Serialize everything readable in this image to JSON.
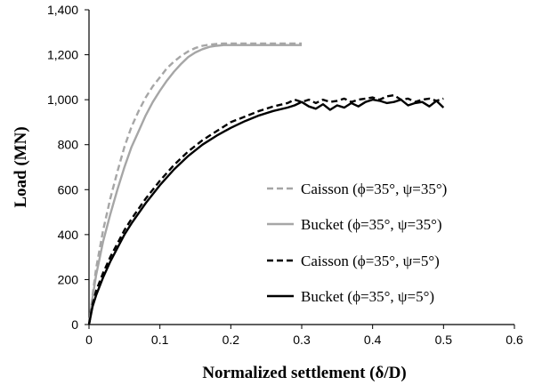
{
  "chart_data": {
    "type": "line",
    "title": "",
    "xlabel": "Normalized settlement (δ/D)",
    "ylabel": "Load (MN)",
    "xlim": [
      0,
      0.6
    ],
    "ylim": [
      0,
      1400
    ],
    "xticks": [
      0,
      0.1,
      0.2,
      0.3,
      0.4,
      0.5,
      0.6
    ],
    "xtick_labels": [
      "0",
      "0.1",
      "0.2",
      "0.3",
      "0.4",
      "0.5",
      "0.6"
    ],
    "yticks": [
      0,
      200,
      400,
      600,
      800,
      1000,
      1200,
      1400
    ],
    "ytick_labels": [
      "0",
      "200",
      "400",
      "600",
      "800",
      "1,000",
      "1,200",
      "1,400"
    ],
    "grid": false,
    "legend_position": "center-right",
    "series": [
      {
        "name": "Caisson (ϕ=35°, ψ=35°)",
        "color": "#a6a6a6",
        "dash": "dashed",
        "x": [
          0,
          0.005,
          0.01,
          0.02,
          0.03,
          0.04,
          0.05,
          0.06,
          0.07,
          0.08,
          0.09,
          0.1,
          0.11,
          0.12,
          0.13,
          0.14,
          0.15,
          0.16,
          0.17,
          0.18,
          0.19,
          0.2,
          0.25,
          0.3
        ],
        "y": [
          0,
          130,
          250,
          420,
          560,
          680,
          790,
          880,
          950,
          1010,
          1060,
          1100,
          1140,
          1170,
          1195,
          1215,
          1230,
          1240,
          1245,
          1248,
          1250,
          1250,
          1250,
          1250
        ]
      },
      {
        "name": "Bucket (ϕ=35°, ψ=35°)",
        "color": "#a6a6a6",
        "dash": "solid",
        "x": [
          0,
          0.005,
          0.01,
          0.02,
          0.03,
          0.04,
          0.05,
          0.06,
          0.07,
          0.08,
          0.09,
          0.1,
          0.11,
          0.12,
          0.13,
          0.14,
          0.15,
          0.16,
          0.17,
          0.18,
          0.19,
          0.2,
          0.21,
          0.25,
          0.3
        ],
        "y": [
          0,
          120,
          220,
          370,
          490,
          600,
          700,
          790,
          860,
          930,
          990,
          1040,
          1085,
          1125,
          1160,
          1190,
          1210,
          1225,
          1235,
          1240,
          1243,
          1243,
          1243,
          1243,
          1243
        ]
      },
      {
        "name": "Caisson (ϕ=35°, ψ=5°)",
        "color": "#000000",
        "dash": "dashed",
        "x": [
          0,
          0.005,
          0.01,
          0.02,
          0.03,
          0.04,
          0.05,
          0.06,
          0.08,
          0.1,
          0.12,
          0.14,
          0.16,
          0.18,
          0.2,
          0.22,
          0.24,
          0.26,
          0.28,
          0.29,
          0.3,
          0.31,
          0.32,
          0.33,
          0.34,
          0.35,
          0.36,
          0.37,
          0.38,
          0.39,
          0.4,
          0.41,
          0.42,
          0.43,
          0.44,
          0.45,
          0.46,
          0.47,
          0.48,
          0.49,
          0.5
        ],
        "y": [
          0,
          90,
          150,
          230,
          300,
          360,
          420,
          470,
          560,
          640,
          710,
          770,
          820,
          860,
          900,
          925,
          950,
          970,
          985,
          1000,
          990,
          1000,
          985,
          1000,
          990,
          995,
          1005,
          990,
          1000,
          1005,
          1010,
          1000,
          1015,
          1020,
          1000,
          1005,
          990,
          1000,
          1005,
          995,
          1005
        ]
      },
      {
        "name": "Bucket (ϕ=35°, ψ=5°)",
        "color": "#000000",
        "dash": "solid",
        "x": [
          0,
          0.005,
          0.01,
          0.02,
          0.03,
          0.04,
          0.05,
          0.06,
          0.08,
          0.1,
          0.12,
          0.14,
          0.16,
          0.18,
          0.2,
          0.22,
          0.24,
          0.26,
          0.28,
          0.29,
          0.3,
          0.31,
          0.32,
          0.33,
          0.34,
          0.35,
          0.36,
          0.37,
          0.38,
          0.39,
          0.4,
          0.41,
          0.42,
          0.43,
          0.44,
          0.45,
          0.46,
          0.47,
          0.48,
          0.49,
          0.5
        ],
        "y": [
          0,
          80,
          130,
          210,
          280,
          340,
          400,
          450,
          540,
          620,
          690,
          750,
          800,
          840,
          875,
          905,
          930,
          950,
          965,
          975,
          990,
          970,
          960,
          980,
          955,
          975,
          965,
          985,
          970,
          990,
          1000,
          995,
          985,
          990,
          1000,
          975,
          985,
          990,
          970,
          995,
          965
        ]
      }
    ]
  }
}
